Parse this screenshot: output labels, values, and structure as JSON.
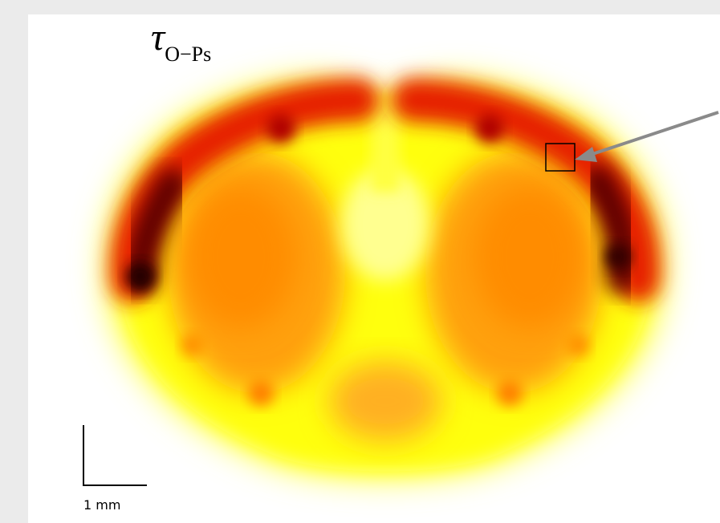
{
  "label": {
    "symbol": "τ",
    "subscript": "O−Ps"
  },
  "scale_bar": {
    "label": "1 mm"
  }
}
